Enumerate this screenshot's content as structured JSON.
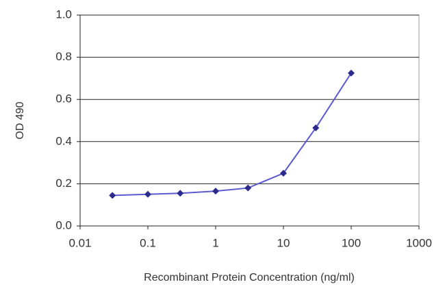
{
  "chart_data": {
    "type": "line",
    "x_label": "Recombinant Protein Concentration (ng/ml)",
    "y_label": "OD 490",
    "x": [
      0.03,
      0.1,
      0.3,
      1,
      3,
      10,
      30,
      100
    ],
    "series": [
      {
        "color": "#2b2b8c",
        "values": [
          0.145,
          0.15,
          0.155,
          0.165,
          0.18,
          0.25,
          0.465,
          0.725
        ]
      }
    ],
    "xlim": [
      0.01,
      1000
    ],
    "xticks": [
      0.01,
      0.1,
      1,
      10,
      100,
      1000
    ],
    "xscale": "log",
    "ylim": [
      0,
      1
    ],
    "yticks": [
      {
        "value": 0,
        "label": "0.0"
      },
      0.2,
      0.4,
      0.6,
      0.8,
      {
        "value": 1,
        "label": "1.0"
      }
    ],
    "grid": true
  }
}
